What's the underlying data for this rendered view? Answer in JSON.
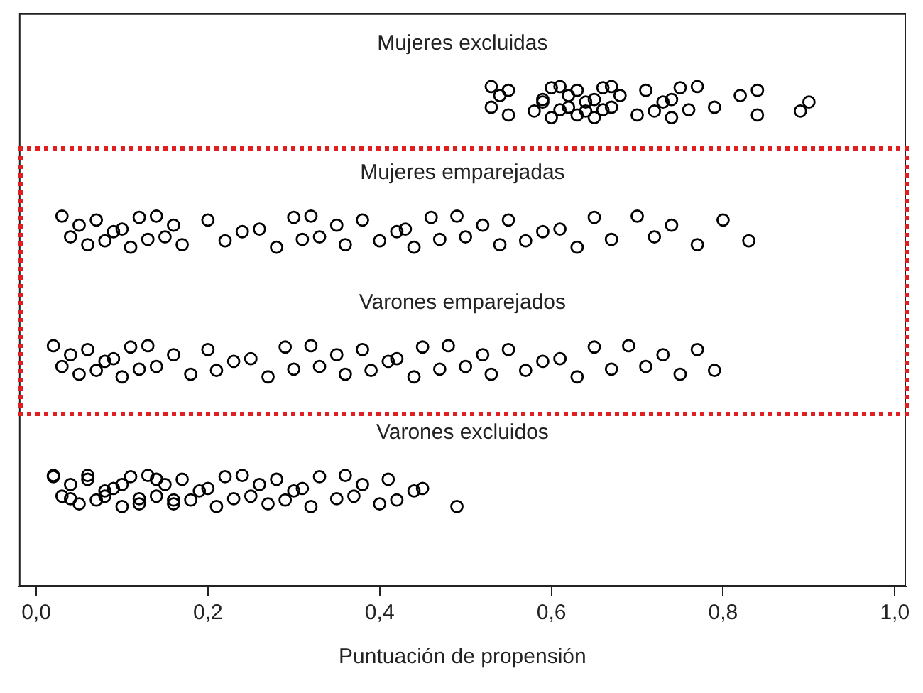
{
  "chart_data": {
    "type": "scatter",
    "orientation": "horizontal",
    "xlabel": "Puntuación de propensión",
    "marker": "circle",
    "categories": [
      "Mujeres excluidas",
      "Mujeres emparejadas",
      "Varones emparejados",
      "Varones excluidos"
    ],
    "xlim": [
      -0.02,
      1.013
    ],
    "xticks": [
      {
        "value": 0,
        "label": "0,0"
      },
      {
        "value": 0.2,
        "label": "0,2"
      },
      {
        "value": 0.4,
        "label": "0,4"
      },
      {
        "value": 0.6,
        "label": "0,6"
      },
      {
        "value": 0.8,
        "label": "0,8"
      },
      {
        "value": 1,
        "label": "1,0"
      }
    ],
    "series": [
      {
        "color": "#000000",
        "x": [
          "Mujeres excluidas",
          "Mujeres excluidas",
          "Mujeres excluidas",
          "Mujeres excluidas",
          "Mujeres excluidas",
          "Mujeres excluidas",
          "Mujeres excluidas",
          "Mujeres excluidas",
          "Mujeres excluidas",
          "Mujeres excluidas",
          "Mujeres excluidas",
          "Mujeres excluidas",
          "Mujeres excluidas",
          "Mujeres excluidas",
          "Mujeres excluidas",
          "Mujeres excluidas",
          "Mujeres excluidas",
          "Mujeres excluidas",
          "Mujeres excluidas",
          "Mujeres excluidas",
          "Mujeres excluidas",
          "Mujeres excluidas",
          "Mujeres excluidas",
          "Mujeres excluidas",
          "Mujeres excluidas",
          "Mujeres excluidas",
          "Mujeres excluidas",
          "Mujeres excluidas",
          "Mujeres excluidas",
          "Mujeres excluidas",
          "Mujeres excluidas",
          "Mujeres excluidas",
          "Mujeres excluidas",
          "Mujeres excluidas",
          "Mujeres excluidas",
          "Mujeres excluidas",
          "Mujeres excluidas",
          "Mujeres excluidas",
          "Mujeres excluidas",
          "Mujeres excluidas"
        ],
        "values": [
          0.53,
          0.53,
          0.54,
          0.55,
          0.55,
          0.58,
          0.59,
          0.59,
          0.6,
          0.6,
          0.61,
          0.61,
          0.62,
          0.62,
          0.63,
          0.63,
          0.64,
          0.64,
          0.65,
          0.65,
          0.66,
          0.66,
          0.67,
          0.67,
          0.68,
          0.7,
          0.71,
          0.72,
          0.73,
          0.74,
          0.74,
          0.75,
          0.76,
          0.77,
          0.79,
          0.82,
          0.84,
          0.84,
          0.89,
          0.9
        ]
      },
      {
        "color": "#000000",
        "x": [
          "Mujeres emparejadas",
          "Mujeres emparejadas",
          "Mujeres emparejadas",
          "Mujeres emparejadas",
          "Mujeres emparejadas",
          "Mujeres emparejadas",
          "Mujeres emparejadas",
          "Mujeres emparejadas",
          "Mujeres emparejadas",
          "Mujeres emparejadas",
          "Mujeres emparejadas",
          "Mujeres emparejadas",
          "Mujeres emparejadas",
          "Mujeres emparejadas",
          "Mujeres emparejadas",
          "Mujeres emparejadas",
          "Mujeres emparejadas",
          "Mujeres emparejadas",
          "Mujeres emparejadas",
          "Mujeres emparejadas",
          "Mujeres emparejadas",
          "Mujeres emparejadas",
          "Mujeres emparejadas",
          "Mujeres emparejadas",
          "Mujeres emparejadas",
          "Mujeres emparejadas",
          "Mujeres emparejadas",
          "Mujeres emparejadas",
          "Mujeres emparejadas",
          "Mujeres emparejadas",
          "Mujeres emparejadas",
          "Mujeres emparejadas",
          "Mujeres emparejadas",
          "Mujeres emparejadas",
          "Mujeres emparejadas",
          "Mujeres emparejadas",
          "Mujeres emparejadas",
          "Mujeres emparejadas",
          "Mujeres emparejadas",
          "Mujeres emparejadas",
          "Mujeres emparejadas",
          "Mujeres emparejadas",
          "Mujeres emparejadas",
          "Mujeres emparejadas",
          "Mujeres emparejadas",
          "Mujeres emparejadas",
          "Mujeres emparejadas",
          "Mujeres emparejadas",
          "Mujeres emparejadas",
          "Mujeres emparejadas"
        ],
        "values": [
          0.03,
          0.04,
          0.05,
          0.06,
          0.07,
          0.08,
          0.09,
          0.1,
          0.11,
          0.12,
          0.13,
          0.14,
          0.15,
          0.16,
          0.17,
          0.2,
          0.22,
          0.24,
          0.26,
          0.28,
          0.3,
          0.31,
          0.32,
          0.33,
          0.35,
          0.36,
          0.38,
          0.4,
          0.42,
          0.43,
          0.44,
          0.46,
          0.47,
          0.49,
          0.5,
          0.52,
          0.54,
          0.55,
          0.57,
          0.59,
          0.61,
          0.63,
          0.65,
          0.67,
          0.7,
          0.72,
          0.74,
          0.77,
          0.8,
          0.83
        ]
      },
      {
        "color": "#000000",
        "x": [
          "Varones emparejados",
          "Varones emparejados",
          "Varones emparejados",
          "Varones emparejados",
          "Varones emparejados",
          "Varones emparejados",
          "Varones emparejados",
          "Varones emparejados",
          "Varones emparejados",
          "Varones emparejados",
          "Varones emparejados",
          "Varones emparejados",
          "Varones emparejados",
          "Varones emparejados",
          "Varones emparejados",
          "Varones emparejados",
          "Varones emparejados",
          "Varones emparejados",
          "Varones emparejados",
          "Varones emparejados",
          "Varones emparejados",
          "Varones emparejados",
          "Varones emparejados",
          "Varones emparejados",
          "Varones emparejados",
          "Varones emparejados",
          "Varones emparejados",
          "Varones emparejados",
          "Varones emparejados",
          "Varones emparejados",
          "Varones emparejados",
          "Varones emparejados",
          "Varones emparejados",
          "Varones emparejados",
          "Varones emparejados",
          "Varones emparejados",
          "Varones emparejados",
          "Varones emparejados",
          "Varones emparejados",
          "Varones emparejados",
          "Varones emparejados",
          "Varones emparejados",
          "Varones emparejados",
          "Varones emparejados",
          "Varones emparejados",
          "Varones emparejados",
          "Varones emparejados",
          "Varones emparejados",
          "Varones emparejados",
          "Varones emparejados"
        ],
        "values": [
          0.02,
          0.03,
          0.04,
          0.05,
          0.06,
          0.07,
          0.08,
          0.09,
          0.1,
          0.11,
          0.12,
          0.13,
          0.14,
          0.16,
          0.18,
          0.2,
          0.21,
          0.23,
          0.25,
          0.27,
          0.29,
          0.3,
          0.32,
          0.33,
          0.35,
          0.36,
          0.38,
          0.39,
          0.41,
          0.42,
          0.44,
          0.45,
          0.47,
          0.48,
          0.5,
          0.52,
          0.53,
          0.55,
          0.57,
          0.59,
          0.61,
          0.63,
          0.65,
          0.67,
          0.69,
          0.71,
          0.73,
          0.75,
          0.77,
          0.79
        ]
      },
      {
        "color": "#000000",
        "x": [
          "Varones excluidos",
          "Varones excluidos",
          "Varones excluidos",
          "Varones excluidos",
          "Varones excluidos",
          "Varones excluidos",
          "Varones excluidos",
          "Varones excluidos",
          "Varones excluidos",
          "Varones excluidos",
          "Varones excluidos",
          "Varones excluidos",
          "Varones excluidos",
          "Varones excluidos",
          "Varones excluidos",
          "Varones excluidos",
          "Varones excluidos",
          "Varones excluidos",
          "Varones excluidos",
          "Varones excluidos",
          "Varones excluidos",
          "Varones excluidos",
          "Varones excluidos",
          "Varones excluidos",
          "Varones excluidos",
          "Varones excluidos",
          "Varones excluidos",
          "Varones excluidos",
          "Varones excluidos",
          "Varones excluidos",
          "Varones excluidos",
          "Varones excluidos",
          "Varones excluidos",
          "Varones excluidos",
          "Varones excluidos",
          "Varones excluidos",
          "Varones excluidos",
          "Varones excluidos",
          "Varones excluidos",
          "Varones excluidos",
          "Varones excluidos",
          "Varones excluidos",
          "Varones excluidos",
          "Varones excluidos",
          "Varones excluidos",
          "Varones excluidos",
          "Varones excluidos",
          "Varones excluidos",
          "Varones excluidos",
          "Varones excluidos"
        ],
        "values": [
          0.02,
          0.03,
          0.04,
          0.05,
          0.06,
          0.07,
          0.08,
          0.09,
          0.1,
          0.11,
          0.12,
          0.13,
          0.14,
          0.15,
          0.16,
          0.17,
          0.18,
          0.19,
          0.2,
          0.21,
          0.22,
          0.23,
          0.24,
          0.25,
          0.26,
          0.27,
          0.28,
          0.29,
          0.3,
          0.31,
          0.32,
          0.33,
          0.35,
          0.36,
          0.37,
          0.38,
          0.4,
          0.41,
          0.42,
          0.44,
          0.45,
          0.49,
          0.02,
          0.04,
          0.06,
          0.08,
          0.1,
          0.12,
          0.14,
          0.16
        ]
      }
    ]
  }
}
